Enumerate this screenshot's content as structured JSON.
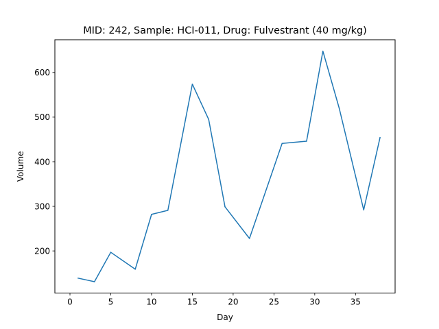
{
  "chart_data": {
    "type": "line",
    "title": "MID: 242, Sample: HCI-011, Drug: Fulvestrant (40 mg/kg)",
    "xlabel": "Day",
    "ylabel": "Volume",
    "xlim": [
      -1.85,
      39.85
    ],
    "ylim": [
      105.5,
      673.5
    ],
    "xticks": [
      0,
      5,
      10,
      15,
      20,
      25,
      30,
      35
    ],
    "yticks": [
      200,
      300,
      400,
      500,
      600
    ],
    "grid": false,
    "series": [
      {
        "color": "#1f77b4",
        "x": [
          1,
          3,
          5,
          8,
          10,
          12,
          15,
          17,
          19,
          22,
          26,
          29,
          31,
          33,
          36,
          38
        ],
        "y": [
          139,
          131,
          197,
          159,
          282,
          291,
          574,
          495,
          299,
          228,
          441,
          446,
          648,
          520,
          292,
          454
        ]
      }
    ]
  }
}
